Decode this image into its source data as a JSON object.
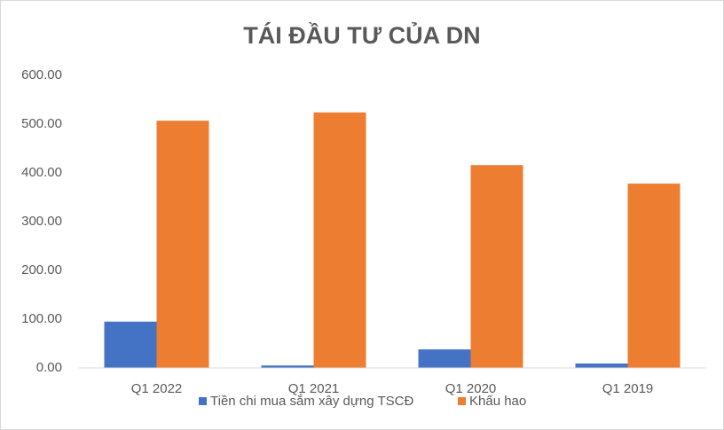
{
  "chart_data": {
    "type": "bar",
    "title": "TÁI ĐẦU TƯ CỦA DN",
    "categories": [
      "Q1 2022",
      "Q1 2021",
      "Q1 2020",
      "Q1 2019"
    ],
    "series": [
      {
        "name": "Tiền chi mua sắm xây dựng TSCĐ",
        "color": "#4472c4",
        "values": [
          95,
          5,
          38,
          9
        ]
      },
      {
        "name": "Khấu hao",
        "color": "#ed7d31",
        "values": [
          507,
          524,
          416,
          378
        ]
      }
    ],
    "ylim": [
      0,
      600
    ],
    "yticks": [
      {
        "value": 0,
        "label": "0.00"
      },
      {
        "value": 100,
        "label": "100.00"
      },
      {
        "value": 200,
        "label": "200.00"
      },
      {
        "value": 300,
        "label": "300.00"
      },
      {
        "value": 400,
        "label": "400.00"
      },
      {
        "value": 500,
        "label": "500.00"
      },
      {
        "value": 600,
        "label": "600.00"
      }
    ],
    "grid": false,
    "legend": "bottom"
  }
}
